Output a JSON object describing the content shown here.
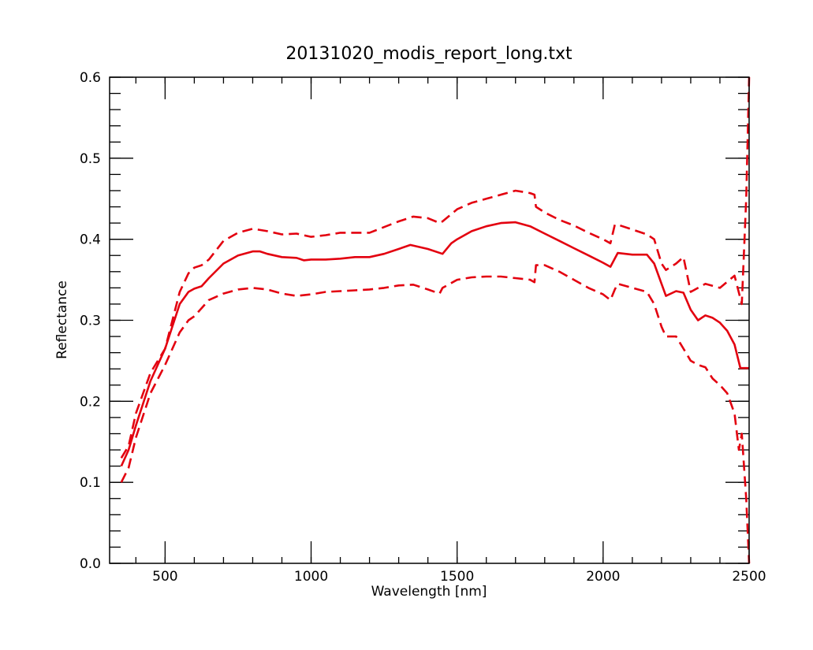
{
  "chart_data": {
    "type": "line",
    "title": "20131020_modis_report_long.txt",
    "xlabel": "Wavelength [nm]",
    "ylabel": "Reflectance",
    "xlim": [
      310,
      2500
    ],
    "ylim": [
      0.0,
      0.6
    ],
    "x_ticks": [
      500,
      1000,
      1500,
      2000,
      2500
    ],
    "x_tick_labels": [
      "500",
      "1000",
      "1500",
      "2000",
      "2500"
    ],
    "y_ticks": [
      0.0,
      0.1,
      0.2,
      0.3,
      0.4,
      0.5,
      0.6
    ],
    "y_tick_labels": [
      "0.0",
      "0.1",
      "0.2",
      "0.3",
      "0.4",
      "0.5",
      "0.6"
    ],
    "x_minor_step": 100,
    "y_minor_step": 0.02,
    "grid": false,
    "color": "#e3000f",
    "series": [
      {
        "style": "solid",
        "x": [
          350,
          375,
          400,
          450,
          500,
          550,
          580,
          600,
          625,
          650,
          700,
          750,
          800,
          825,
          850,
          900,
          950,
          975,
          1000,
          1050,
          1100,
          1150,
          1200,
          1250,
          1300,
          1340,
          1400,
          1450,
          1480,
          1500,
          1550,
          1600,
          1650,
          1700,
          1750,
          1800,
          1850,
          1900,
          1950,
          2000,
          2025,
          2050,
          2100,
          2150,
          2175,
          2200,
          2215,
          2250,
          2275,
          2300,
          2325,
          2350,
          2375,
          2400,
          2425,
          2450,
          2470,
          2500
        ],
        "values": [
          0.12,
          0.14,
          0.17,
          0.225,
          0.265,
          0.32,
          0.335,
          0.339,
          0.342,
          0.352,
          0.37,
          0.38,
          0.385,
          0.385,
          0.382,
          0.378,
          0.377,
          0.374,
          0.375,
          0.375,
          0.376,
          0.378,
          0.378,
          0.382,
          0.388,
          0.393,
          0.388,
          0.382,
          0.395,
          0.4,
          0.41,
          0.416,
          0.42,
          0.421,
          0.416,
          0.407,
          0.398,
          0.389,
          0.38,
          0.371,
          0.366,
          0.383,
          0.381,
          0.381,
          0.37,
          0.345,
          0.33,
          0.336,
          0.334,
          0.313,
          0.3,
          0.306,
          0.303,
          0.297,
          0.287,
          0.27,
          0.241,
          0.241
        ]
      },
      {
        "style": "dashed",
        "x": [
          350,
          375,
          400,
          450,
          500,
          550,
          580,
          600,
          625,
          650,
          700,
          750,
          800,
          850,
          900,
          950,
          1000,
          1050,
          1100,
          1150,
          1200,
          1250,
          1300,
          1350,
          1400,
          1440,
          1450,
          1500,
          1550,
          1600,
          1650,
          1700,
          1750,
          1765,
          1770,
          1800,
          1850,
          1900,
          1950,
          2000,
          2025,
          2040,
          2050,
          2100,
          2150,
          2175,
          2200,
          2215,
          2250,
          2275,
          2300,
          2350,
          2400,
          2450,
          2475,
          2490,
          2500
        ],
        "values": [
          0.13,
          0.145,
          0.185,
          0.235,
          0.265,
          0.335,
          0.358,
          0.365,
          0.368,
          0.375,
          0.398,
          0.408,
          0.413,
          0.41,
          0.406,
          0.407,
          0.403,
          0.405,
          0.408,
          0.408,
          0.408,
          0.415,
          0.422,
          0.428,
          0.426,
          0.42,
          0.422,
          0.437,
          0.445,
          0.45,
          0.455,
          0.46,
          0.457,
          0.455,
          0.44,
          0.433,
          0.424,
          0.417,
          0.408,
          0.4,
          0.395,
          0.418,
          0.418,
          0.412,
          0.406,
          0.4,
          0.37,
          0.362,
          0.37,
          0.378,
          0.335,
          0.345,
          0.34,
          0.355,
          0.32,
          0.45,
          0.6
        ]
      },
      {
        "style": "dashed",
        "x": [
          350,
          375,
          400,
          450,
          500,
          550,
          580,
          600,
          625,
          650,
          700,
          750,
          800,
          850,
          900,
          950,
          1000,
          1050,
          1100,
          1150,
          1200,
          1250,
          1300,
          1350,
          1400,
          1440,
          1450,
          1500,
          1550,
          1600,
          1650,
          1700,
          1750,
          1765,
          1770,
          1800,
          1850,
          1900,
          1950,
          2000,
          2025,
          2040,
          2050,
          2100,
          2150,
          2175,
          2200,
          2215,
          2250,
          2275,
          2300,
          2325,
          2350,
          2375,
          2400,
          2425,
          2450,
          2465,
          2475,
          2490,
          2500
        ],
        "values": [
          0.1,
          0.118,
          0.155,
          0.21,
          0.245,
          0.285,
          0.3,
          0.305,
          0.315,
          0.325,
          0.333,
          0.338,
          0.34,
          0.338,
          0.333,
          0.33,
          0.332,
          0.335,
          0.336,
          0.337,
          0.338,
          0.34,
          0.343,
          0.344,
          0.338,
          0.333,
          0.34,
          0.35,
          0.353,
          0.354,
          0.354,
          0.352,
          0.35,
          0.347,
          0.368,
          0.368,
          0.36,
          0.35,
          0.34,
          0.332,
          0.325,
          0.338,
          0.345,
          0.34,
          0.335,
          0.32,
          0.292,
          0.28,
          0.28,
          0.265,
          0.25,
          0.245,
          0.242,
          0.228,
          0.22,
          0.21,
          0.185,
          0.14,
          0.16,
          0.08,
          0.0
        ]
      }
    ]
  }
}
